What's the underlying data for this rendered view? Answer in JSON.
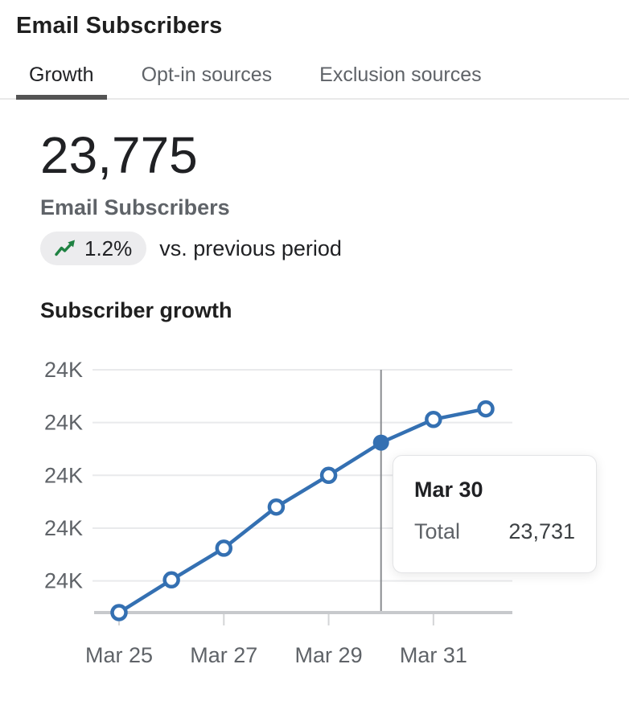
{
  "header": {
    "title": "Email Subscribers"
  },
  "tabs": {
    "items": [
      {
        "label": "Growth",
        "active": true
      },
      {
        "label": "Opt-in sources",
        "active": false
      },
      {
        "label": "Exclusion sources",
        "active": false
      }
    ]
  },
  "metric": {
    "value": "23,775",
    "label": "Email Subscribers",
    "change": {
      "percent": "1.2%",
      "direction": "up",
      "icon": "trend-up-icon",
      "comparison": "vs. previous period"
    }
  },
  "section": {
    "title": "Subscriber growth"
  },
  "tooltip": {
    "date": "Mar 30",
    "metric_label": "Total",
    "value": "23,731"
  },
  "colors": {
    "accent_blue": "#3470b2",
    "positive_green": "#1f8242",
    "badge_bg": "#ececee",
    "grid": "#e9eaec",
    "axis": "#c7c9cc",
    "tick": "#d4d5d7",
    "crosshair": "#8a8d91",
    "text_primary": "#202124",
    "text_secondary": "#5f6368",
    "tab_underline": "#545454"
  },
  "chart_data": {
    "type": "line",
    "title": "Subscriber growth",
    "x": [
      "Mar 25",
      "Mar 26",
      "Mar 27",
      "Mar 28",
      "Mar 29",
      "Mar 30",
      "Mar 31",
      "Apr 1"
    ],
    "series": [
      {
        "name": "Email Subscribers total",
        "values": [
          23570,
          23601,
          23631,
          23670,
          23700,
          23731,
          23753,
          23763
        ]
      }
    ],
    "ylim": [
      23570,
      23800
    ],
    "y_ticks": [
      {
        "value": 23600,
        "label": "24K"
      },
      {
        "value": 23650,
        "label": "24K"
      },
      {
        "value": 23700,
        "label": "24K"
      },
      {
        "value": 23750,
        "label": "24K"
      },
      {
        "value": 23800,
        "label": "24K"
      }
    ],
    "x_tick_indices": [
      0,
      2,
      4,
      6
    ],
    "x_tick_labels": [
      "Mar 25",
      "Mar 27",
      "Mar 29",
      "Mar 31"
    ],
    "highlight_index": 5,
    "highlight": {
      "date": "Mar 30",
      "label": "Total",
      "value": 23731
    },
    "grid": true,
    "legend": false
  }
}
